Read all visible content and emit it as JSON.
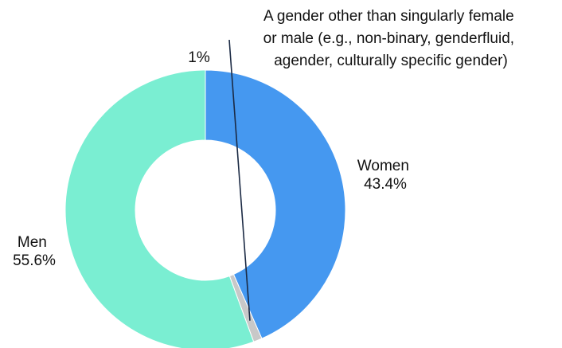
{
  "chart_data": {
    "type": "pie",
    "variant": "donut",
    "title": "",
    "categories": [
      "Women",
      "A gender other than singularly female or male (e.g., non-binary, genderfluid, agender, culturally specific gender)",
      "Men"
    ],
    "values": [
      43.4,
      1,
      55.6
    ],
    "labels": [
      "43.4%",
      "1%",
      "55.6%"
    ],
    "colors": [
      "#4598F0",
      "#C8C8C8",
      "#7AEED2"
    ],
    "legend": "none",
    "annotations": [
      {
        "category_lines": [
          "Women"
        ],
        "value_text": "43.4%"
      },
      {
        "category_lines": [
          "A gender other than singularly female",
          "or male (e.g., non-binary, genderfluid,",
          "agender, culturally specific gender)"
        ],
        "value_text": "1%"
      },
      {
        "category_lines": [
          "Men"
        ],
        "value_text": "55.6%"
      }
    ]
  }
}
